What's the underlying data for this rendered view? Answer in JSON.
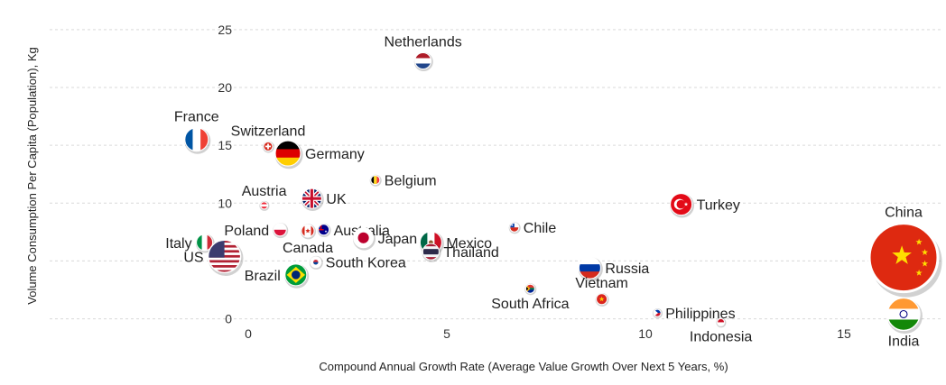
{
  "chart_data": {
    "type": "scatter",
    "title": "",
    "xlabel": "Compound Annual Growth Rate (Average Value Growth Over Next 5 Years, %)",
    "ylabel": "Volume Consumption Per Capita (Population), Kg",
    "xlim": [
      -5,
      17.5
    ],
    "ylim": [
      -0.5,
      26
    ],
    "x_ticks": [
      0,
      5,
      10,
      15
    ],
    "y_ticks": [
      0,
      5,
      10,
      15,
      20,
      25
    ],
    "x_tick_labels": [
      "0",
      "5",
      "10",
      "15"
    ],
    "y_tick_labels": [
      "0",
      "",
      "10",
      "15",
      "20",
      "25"
    ],
    "grid": "horizontal",
    "points": [
      {
        "name": "Netherlands",
        "x": 4.4,
        "y": 22.3,
        "size": 9,
        "label_pos": "above",
        "flag": "netherlands"
      },
      {
        "name": "France",
        "x": -1.3,
        "y": 15.5,
        "size": 13,
        "label_pos": "above",
        "flag": "france"
      },
      {
        "name": "Switzerland",
        "x": 0.5,
        "y": 14.9,
        "size": 5,
        "label_pos": "above",
        "flag": "switzerland"
      },
      {
        "name": "Germany",
        "x": 1.0,
        "y": 14.3,
        "size": 14,
        "label_pos": "right",
        "flag": "germany"
      },
      {
        "name": "Belgium",
        "x": 3.2,
        "y": 12.0,
        "size": 5,
        "label_pos": "right",
        "flag": "belgium"
      },
      {
        "name": "Austria",
        "x": 0.4,
        "y": 9.8,
        "size": 4,
        "label_pos": "above",
        "flag": "austria"
      },
      {
        "name": "UK",
        "x": 1.6,
        "y": 10.4,
        "size": 11,
        "label_pos": "right",
        "flag": "uk"
      },
      {
        "name": "Turkey",
        "x": 10.9,
        "y": 9.9,
        "size": 12,
        "label_pos": "right",
        "flag": "turkey"
      },
      {
        "name": "Poland",
        "x": 0.8,
        "y": 7.7,
        "size": 7,
        "label_pos": "left",
        "flag": "poland"
      },
      {
        "name": "Canada",
        "x": 1.5,
        "y": 7.6,
        "size": 7,
        "label_pos": "below",
        "flag": "canada"
      },
      {
        "name": "Australia",
        "x": 1.9,
        "y": 7.7,
        "size": 6,
        "label_pos": "right",
        "flag": "australia"
      },
      {
        "name": "Chile",
        "x": 6.7,
        "y": 7.9,
        "size": 5,
        "label_pos": "right",
        "flag": "chile"
      },
      {
        "name": "Japan",
        "x": 2.9,
        "y": 7.0,
        "size": 11,
        "label_pos": "right",
        "flag": "japan"
      },
      {
        "name": "Mexico",
        "x": 4.6,
        "y": 6.6,
        "size": 12,
        "label_pos": "right",
        "flag": "mexico"
      },
      {
        "name": "Italy",
        "x": -1.1,
        "y": 6.6,
        "size": 9,
        "label_pos": "left",
        "flag": "italy"
      },
      {
        "name": "US",
        "x": -0.6,
        "y": 5.4,
        "size": 18,
        "label_pos": "left",
        "flag": "us"
      },
      {
        "name": "China",
        "x": 16.5,
        "y": 5.3,
        "size": 38,
        "label_pos": "above",
        "flag": "china"
      },
      {
        "name": "South Korea",
        "x": 1.7,
        "y": 4.9,
        "size": 6,
        "label_pos": "right",
        "flag": "south_korea"
      },
      {
        "name": "Thailand",
        "x": 4.6,
        "y": 5.8,
        "size": 9,
        "label_pos": "right",
        "flag": "thailand"
      },
      {
        "name": "Russia",
        "x": 8.6,
        "y": 4.4,
        "size": 12,
        "label_pos": "right",
        "flag": "russia"
      },
      {
        "name": "Brazil",
        "x": 1.2,
        "y": 3.8,
        "size": 12,
        "label_pos": "left",
        "flag": "brazil"
      },
      {
        "name": "South Africa",
        "x": 7.1,
        "y": 2.6,
        "size": 5,
        "label_pos": "below",
        "flag": "south_africa"
      },
      {
        "name": "Vietnam",
        "x": 8.9,
        "y": 1.7,
        "size": 6,
        "label_pos": "above",
        "flag": "vietnam"
      },
      {
        "name": "Philippines",
        "x": 10.3,
        "y": 0.5,
        "size": 4,
        "label_pos": "right",
        "flag": "philippines"
      },
      {
        "name": "Indonesia",
        "x": 11.9,
        "y": -0.3,
        "size": 4,
        "label_pos": "below",
        "flag": "indonesia"
      },
      {
        "name": "India",
        "x": 16.5,
        "y": 0.4,
        "size": 18,
        "label_pos": "below",
        "flag": "india"
      }
    ]
  }
}
